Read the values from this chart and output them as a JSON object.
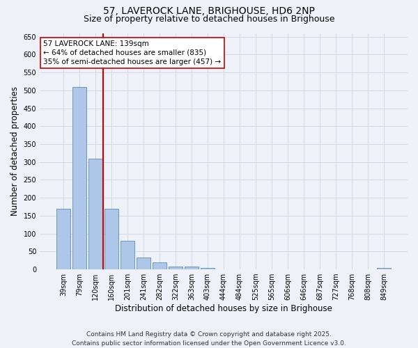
{
  "title_line1": "57, LAVEROCK LANE, BRIGHOUSE, HD6 2NP",
  "title_line2": "Size of property relative to detached houses in Brighouse",
  "xlabel": "Distribution of detached houses by size in Brighouse",
  "ylabel": "Number of detached properties",
  "categories": [
    "39sqm",
    "79sqm",
    "120sqm",
    "160sqm",
    "201sqm",
    "241sqm",
    "282sqm",
    "322sqm",
    "363sqm",
    "403sqm",
    "444sqm",
    "484sqm",
    "525sqm",
    "565sqm",
    "606sqm",
    "646sqm",
    "687sqm",
    "727sqm",
    "768sqm",
    "808sqm",
    "849sqm"
  ],
  "values": [
    170,
    510,
    310,
    170,
    80,
    33,
    20,
    8,
    8,
    5,
    0,
    0,
    0,
    0,
    0,
    0,
    0,
    0,
    0,
    0,
    5
  ],
  "bar_color": "#aec6e8",
  "bar_edge_color": "#5b8db8",
  "vline_color": "#cc0000",
  "annotation_text": "57 LAVEROCK LANE: 139sqm\n← 64% of detached houses are smaller (835)\n35% of semi-detached houses are larger (457) →",
  "annotation_box_color": "#ffffff",
  "annotation_box_edge": "#cc0000",
  "ylim": [
    0,
    660
  ],
  "yticks": [
    0,
    50,
    100,
    150,
    200,
    250,
    300,
    350,
    400,
    450,
    500,
    550,
    600,
    650
  ],
  "grid_color": "#d0d8e8",
  "background_color": "#eef2f8",
  "footer_line1": "Contains HM Land Registry data © Crown copyright and database right 2025.",
  "footer_line2": "Contains public sector information licensed under the Open Government Licence v3.0.",
  "title_fontsize": 10,
  "subtitle_fontsize": 9,
  "axis_label_fontsize": 8.5,
  "tick_fontsize": 7,
  "annotation_fontsize": 7.5,
  "footer_fontsize": 6.5
}
